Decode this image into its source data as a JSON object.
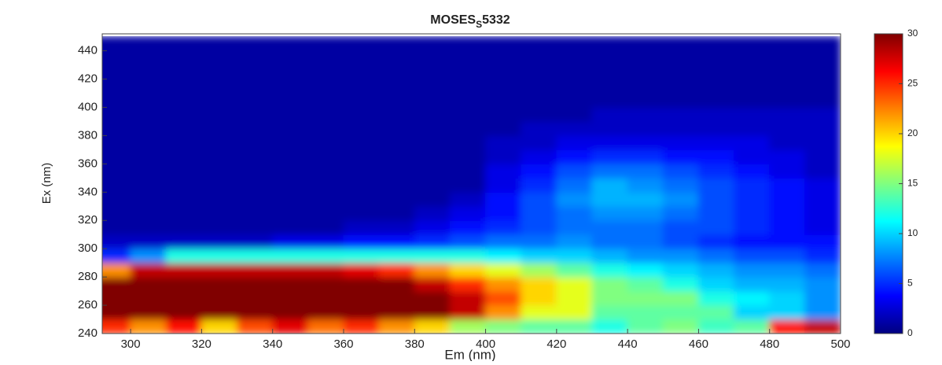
{
  "chart_data": {
    "type": "heatmap",
    "title": [
      "MOSES",
      "S",
      "5332"
    ],
    "x_label": "Em (nm)",
    "y_label": "Ex (nm)",
    "x": [
      295,
      305,
      315,
      325,
      335,
      345,
      355,
      365,
      375,
      385,
      395,
      405,
      415,
      425,
      435,
      445,
      455,
      465,
      475,
      485,
      495
    ],
    "y": [
      245,
      255,
      265,
      275,
      285,
      295,
      305,
      315,
      325,
      335,
      345,
      355,
      365,
      375,
      385,
      395,
      405,
      415,
      425,
      435,
      445
    ],
    "z": [
      [
        25,
        22,
        26,
        20,
        24,
        27,
        23,
        25,
        22,
        20,
        16,
        15,
        14,
        14,
        12,
        14,
        15,
        13,
        14,
        26,
        28
      ],
      [
        30,
        30,
        30,
        30,
        30,
        30,
        30,
        30,
        30,
        30,
        28,
        22,
        18,
        18,
        14,
        14,
        14,
        14,
        10,
        10,
        8
      ],
      [
        30,
        30,
        30,
        30,
        30,
        30,
        30,
        30,
        30,
        30,
        28,
        24,
        20,
        18,
        15,
        15,
        15,
        12,
        11,
        10,
        8
      ],
      [
        30,
        30,
        30,
        30,
        30,
        30,
        30,
        30,
        30,
        28,
        25,
        22,
        20,
        18,
        15,
        14,
        12,
        10,
        9,
        9,
        8
      ],
      [
        22,
        28,
        28,
        28,
        28,
        28,
        28,
        27,
        25,
        22,
        20,
        18,
        16,
        14,
        12,
        11,
        10,
        9,
        8,
        8,
        7
      ],
      [
        5,
        8,
        12,
        12,
        12,
        12,
        12,
        12,
        12,
        12,
        12,
        11,
        10,
        10,
        9,
        8,
        8,
        7,
        6,
        6,
        5
      ],
      [
        2,
        2,
        2,
        2,
        2,
        3,
        3,
        4,
        4,
        5,
        6,
        7,
        7,
        8,
        7,
        7,
        6,
        5,
        4,
        4,
        4
      ],
      [
        1,
        1,
        1,
        1,
        1,
        1,
        1,
        2,
        2,
        3,
        4,
        5,
        6,
        7,
        7,
        7,
        6,
        6,
        5,
        4,
        3
      ],
      [
        1,
        1,
        1,
        1,
        1,
        1,
        1,
        1,
        1,
        2,
        3,
        4,
        6,
        7,
        8,
        8,
        7,
        6,
        5,
        4,
        3
      ],
      [
        1,
        1,
        1,
        1,
        1,
        1,
        1,
        1,
        1,
        1,
        2,
        4,
        6,
        8,
        9,
        9,
        8,
        6,
        5,
        4,
        3
      ],
      [
        1,
        1,
        1,
        1,
        1,
        1,
        1,
        1,
        1,
        1,
        1,
        3,
        5,
        7,
        9,
        8,
        7,
        6,
        5,
        4,
        3
      ],
      [
        1,
        1,
        1,
        1,
        1,
        1,
        1,
        1,
        1,
        1,
        1,
        3,
        4,
        6,
        7,
        7,
        6,
        5,
        4,
        3,
        2
      ],
      [
        1,
        1,
        1,
        1,
        1,
        1,
        1,
        1,
        1,
        1,
        1,
        2,
        3,
        4,
        5,
        5,
        4,
        4,
        3,
        3,
        2
      ],
      [
        1,
        1,
        1,
        1,
        1,
        1,
        1,
        1,
        1,
        1,
        1,
        2,
        2,
        3,
        3,
        3,
        3,
        3,
        3,
        2,
        2
      ],
      [
        1,
        1,
        1,
        1,
        1,
        1,
        1,
        1,
        1,
        1,
        1,
        1,
        2,
        2,
        2,
        2,
        2,
        2,
        2,
        2,
        2
      ],
      [
        1,
        1,
        1,
        1,
        1,
        1,
        1,
        1,
        1,
        1,
        1,
        1,
        1,
        1,
        2,
        2,
        2,
        2,
        2,
        2,
        2
      ],
      [
        1,
        1,
        1,
        1,
        1,
        1,
        1,
        1,
        1,
        1,
        1,
        1,
        1,
        1,
        1,
        1,
        1,
        1,
        1,
        1,
        1
      ],
      [
        1,
        1,
        1,
        1,
        1,
        1,
        1,
        1,
        1,
        1,
        1,
        1,
        1,
        1,
        1,
        1,
        1,
        1,
        1,
        1,
        1
      ],
      [
        1,
        1,
        1,
        1,
        1,
        1,
        1,
        1,
        1,
        1,
        1,
        1,
        1,
        1,
        1,
        1,
        1,
        1,
        1,
        1,
        1
      ],
      [
        1,
        1,
        1,
        1,
        1,
        1,
        1,
        1,
        1,
        1,
        1,
        1,
        1,
        1,
        1,
        1,
        1,
        1,
        1,
        1,
        1
      ],
      [
        1,
        1,
        1,
        1,
        1,
        1,
        1,
        1,
        1,
        1,
        1,
        1,
        1,
        1,
        1,
        1,
        1,
        1,
        1,
        1,
        1
      ]
    ],
    "colormap": "jet",
    "xlim": [
      292,
      500
    ],
    "xticks": [
      300,
      320,
      340,
      360,
      380,
      400,
      420,
      440,
      460,
      480,
      500
    ],
    "ylim": [
      240,
      452
    ],
    "yticks": [
      240,
      260,
      280,
      300,
      320,
      340,
      360,
      380,
      400,
      420,
      440
    ],
    "clim": [
      0,
      30
    ],
    "cticks": [
      0,
      5,
      10,
      15,
      20,
      25,
      30
    ]
  }
}
